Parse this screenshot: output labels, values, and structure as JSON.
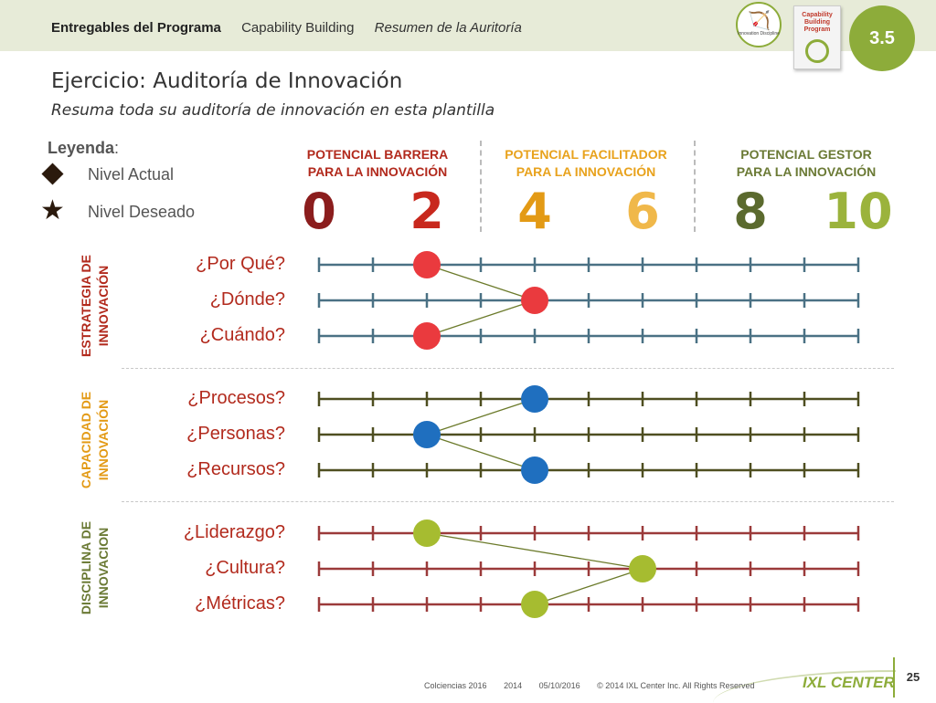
{
  "header": {
    "breadcrumbs": [
      "Entregables del Programa",
      "Capability Building",
      "Resumen de la Auritoría"
    ],
    "logo_disc_label": "Innovation Discipline",
    "logo_cbp_label": "Capability Building Program",
    "slide_badge": "3.5"
  },
  "title": "Ejercicio: Auditoría de Innovación",
  "subtitle": "Resuma toda su auditoría de innovación en esta plantilla",
  "legend": {
    "title": "Leyenda",
    "colon": ":",
    "current": "Nivel Actual",
    "desired": "Nivel Deseado"
  },
  "zones": [
    {
      "line1": "POTENCIAL BARRERA",
      "line2": "PARA LA INNOVACIÓN",
      "color": "#b22a1d"
    },
    {
      "line1": "POTENCIAL FACILITADOR",
      "line2": "PARA LA INNOVACIÓN",
      "color": "#e8a21c"
    },
    {
      "line1": "POTENCIAL GESTOR",
      "line2": "PARA LA INNOVACIÓN",
      "color": "#6b7a35"
    }
  ],
  "scale": [
    {
      "label": "0",
      "value": 0,
      "color": "#8b1d1d"
    },
    {
      "label": "2",
      "value": 2,
      "color": "#c8281d"
    },
    {
      "label": "4",
      "value": 4,
      "color": "#e39a15"
    },
    {
      "label": "6",
      "value": 6,
      "color": "#f0b84a"
    },
    {
      "label": "8",
      "value": 8,
      "color": "#5b6a2e"
    },
    {
      "label": "10",
      "value": 10,
      "color": "#9bb33c"
    }
  ],
  "sections": [
    {
      "label_line1": "ESTRATEGIA DE",
      "label_line2": "INNOVACIÓN",
      "label_color": "#b22a1d",
      "line_color": "#4a7184",
      "dot_color": "#ea3a3e",
      "connector_color": "#6b7a2a",
      "rows": [
        {
          "question": "¿Por Qué?",
          "value": 2
        },
        {
          "question": "¿Dónde?",
          "value": 4
        },
        {
          "question": "¿Cuándo?",
          "value": 2
        }
      ]
    },
    {
      "label_line1": "CAPACIDAD DE",
      "label_line2": "INNOVACIÓN",
      "label_color": "#e39a15",
      "line_color": "#4e4e20",
      "dot_color": "#1f6fbf",
      "connector_color": "#6b7a2a",
      "rows": [
        {
          "question": "¿Procesos?",
          "value": 4
        },
        {
          "question": "¿Personas?",
          "value": 2
        },
        {
          "question": "¿Recursos?",
          "value": 4
        }
      ]
    },
    {
      "label_line1": "DISCIPLINA DE",
      "label_line2": "INNOVACION",
      "label_color": "#6b7a35",
      "line_color": "#9b3a3a",
      "dot_color": "#a6bc30",
      "connector_color": "#6b7a2a",
      "rows": [
        {
          "question": "¿Liderazgo?",
          "value": 2
        },
        {
          "question": "¿Cultura?",
          "value": 6
        },
        {
          "question": "¿Métricas?",
          "value": 4
        }
      ]
    }
  ],
  "question_color": "#b22a1d",
  "footer": {
    "items": [
      "Colciencias 2016",
      "2014",
      "05/10/2016",
      "© 2014 IXL Center Inc. All Rights Reserved"
    ],
    "brand": "IXL CENTER",
    "page": "25"
  }
}
